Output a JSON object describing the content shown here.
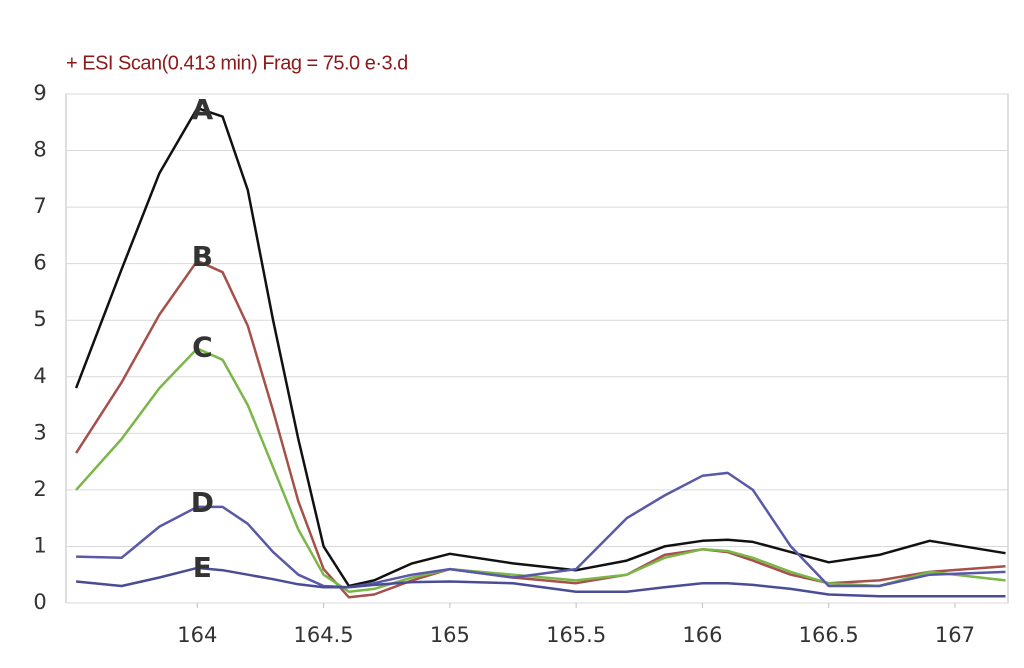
{
  "chart_data": {
    "type": "line",
    "title": "+ ESI Scan(0.413 min) Frag = 75.0 e·3.d",
    "x": [
      163.52,
      163.7,
      163.85,
      164,
      164.1,
      164.2,
      164.3,
      164.4,
      164.5,
      164.6,
      164.7,
      164.85,
      165,
      165.25,
      165.5,
      165.7,
      165.85,
      166,
      166.1,
      166.2,
      166.35,
      166.5,
      166.7,
      166.9,
      167.2
    ],
    "series": [
      {
        "name": "A",
        "color": "#111111",
        "values": [
          3.8,
          5.9,
          7.6,
          8.75,
          8.6,
          7.3,
          5.0,
          2.9,
          1.0,
          0.3,
          0.4,
          0.7,
          0.87,
          0.7,
          0.58,
          0.75,
          1.0,
          1.1,
          1.12,
          1.08,
          0.9,
          0.72,
          0.85,
          1.1,
          0.88
        ]
      },
      {
        "name": "B",
        "color": "#a5504a",
        "values": [
          2.65,
          3.9,
          5.1,
          6.05,
          5.85,
          4.9,
          3.4,
          1.8,
          0.6,
          0.1,
          0.15,
          0.4,
          0.6,
          0.45,
          0.35,
          0.5,
          0.85,
          0.95,
          0.9,
          0.75,
          0.5,
          0.35,
          0.4,
          0.55,
          0.65
        ]
      },
      {
        "name": "C",
        "color": "#7ab648",
        "values": [
          2.0,
          2.9,
          3.8,
          4.5,
          4.3,
          3.5,
          2.4,
          1.3,
          0.5,
          0.2,
          0.25,
          0.45,
          0.6,
          0.5,
          0.4,
          0.5,
          0.8,
          0.95,
          0.92,
          0.8,
          0.55,
          0.35,
          0.3,
          0.55,
          0.4
        ]
      },
      {
        "name": "D",
        "color": "#5a58a8",
        "values": [
          0.82,
          0.8,
          1.35,
          1.7,
          1.7,
          1.4,
          0.9,
          0.5,
          0.3,
          0.28,
          0.35,
          0.5,
          0.6,
          0.45,
          0.6,
          1.5,
          1.9,
          2.25,
          2.3,
          2.0,
          1.0,
          0.3,
          0.3,
          0.5,
          0.55
        ]
      },
      {
        "name": "E",
        "color": "#4a4c95",
        "values": [
          0.38,
          0.3,
          0.45,
          0.62,
          0.58,
          0.5,
          0.42,
          0.33,
          0.28,
          0.28,
          0.32,
          0.37,
          0.38,
          0.35,
          0.2,
          0.2,
          0.28,
          0.35,
          0.35,
          0.32,
          0.25,
          0.15,
          0.12,
          0.12,
          0.12
        ]
      }
    ],
    "annotations": [
      {
        "text": "A",
        "x": 164.02,
        "y": 8.7
      },
      {
        "text": "B",
        "x": 164.02,
        "y": 6.1
      },
      {
        "text": "C",
        "x": 164.02,
        "y": 4.5
      },
      {
        "text": "D",
        "x": 164.02,
        "y": 1.75
      },
      {
        "text": "E",
        "x": 164.02,
        "y": 0.6
      }
    ],
    "xlim": [
      163.48,
      167.21
    ],
    "ylim": [
      0,
      9
    ],
    "xticks": [
      164,
      164.5,
      165,
      165.5,
      166,
      166.5,
      167
    ],
    "yticks": [
      0,
      1,
      2,
      3,
      4,
      5,
      6,
      7,
      8,
      9
    ],
    "grid": true
  }
}
